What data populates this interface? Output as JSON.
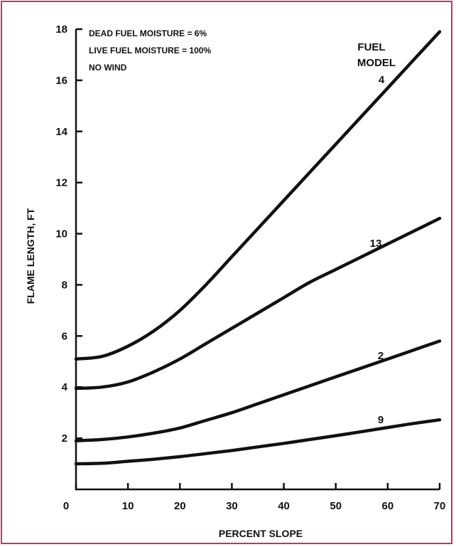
{
  "colors": {
    "border": "#c8325a",
    "ink": "#111111"
  },
  "chart_data": {
    "type": "line",
    "xlabel": "PERCENT SLOPE",
    "ylabel": "FLAME LENGTH, FT",
    "xlim": [
      0,
      70
    ],
    "ylim": [
      0,
      18
    ],
    "xticks": [
      0,
      10,
      20,
      30,
      40,
      50,
      60,
      70
    ],
    "yticks": [
      2,
      4,
      6,
      8,
      10,
      12,
      14,
      16,
      18
    ],
    "grid": false,
    "notes": [
      "DEAD FUEL MOISTURE = 6%",
      "LIVE FUEL MOISTURE = 100%",
      "NO WIND"
    ],
    "legend_title": [
      "FUEL",
      "MODEL"
    ],
    "series": [
      {
        "name": "4",
        "x": [
          0,
          5,
          10,
          15,
          20,
          25,
          30,
          35,
          40,
          45,
          50,
          55,
          60,
          65,
          70
        ],
        "values": [
          5.1,
          5.2,
          5.6,
          6.2,
          7.0,
          8.0,
          9.1,
          10.2,
          11.3,
          12.4,
          13.5,
          14.6,
          15.7,
          16.8,
          17.9
        ]
      },
      {
        "name": "13",
        "x": [
          0,
          5,
          10,
          15,
          20,
          25,
          30,
          35,
          40,
          45,
          50,
          55,
          60,
          65,
          70
        ],
        "values": [
          3.95,
          4.0,
          4.2,
          4.6,
          5.1,
          5.7,
          6.3,
          6.9,
          7.5,
          8.1,
          8.6,
          9.1,
          9.6,
          10.1,
          10.6
        ]
      },
      {
        "name": "2",
        "x": [
          0,
          5,
          10,
          15,
          20,
          25,
          30,
          35,
          40,
          45,
          50,
          55,
          60,
          65,
          70
        ],
        "values": [
          1.9,
          1.95,
          2.05,
          2.2,
          2.4,
          2.7,
          3.0,
          3.35,
          3.7,
          4.05,
          4.4,
          4.75,
          5.1,
          5.45,
          5.8
        ]
      },
      {
        "name": "9",
        "x": [
          0,
          5,
          10,
          15,
          20,
          25,
          30,
          35,
          40,
          45,
          50,
          55,
          60,
          65,
          70
        ],
        "values": [
          1.0,
          1.02,
          1.1,
          1.18,
          1.28,
          1.4,
          1.52,
          1.66,
          1.8,
          1.95,
          2.1,
          2.26,
          2.42,
          2.58,
          2.72
        ]
      }
    ]
  }
}
